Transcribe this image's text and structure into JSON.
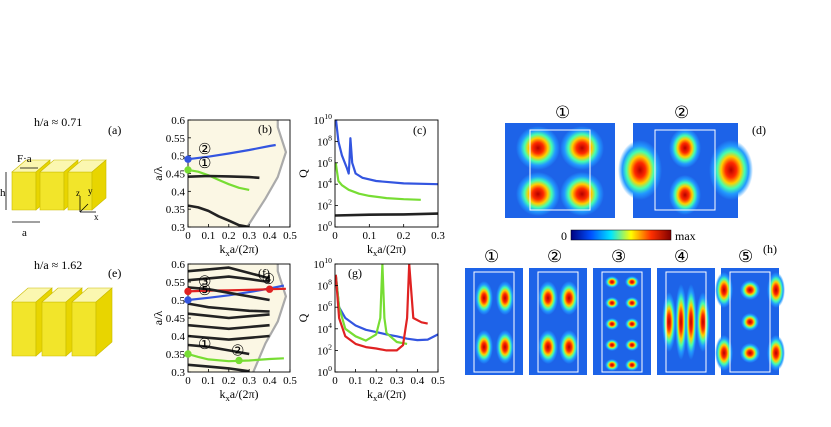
{
  "panels": {
    "a": {
      "tag": "(a)",
      "ratio": "h/a ≈ 0.71",
      "label_fa": "F·a",
      "label_h": "h",
      "label_a": "a",
      "label_z": "z",
      "label_y": "y",
      "label_x": "x"
    },
    "e": {
      "tag": "(e)",
      "ratio": "h/a ≈ 1.62"
    },
    "b": {
      "tag": "(b)"
    },
    "c": {
      "tag": "(c)"
    },
    "d": {
      "tag": "(d)",
      "modes": [
        "①",
        "②"
      ]
    },
    "f": {
      "tag": "(f)"
    },
    "g": {
      "tag": "(g)"
    },
    "h": {
      "tag": "(h)",
      "modes": [
        "①",
        "②",
        "③",
        "④",
        "⑤"
      ]
    }
  },
  "colorbar": {
    "min": "0",
    "max": "max"
  },
  "markers": [
    "①",
    "②",
    "③",
    "④",
    "⑤"
  ],
  "colors": {
    "blue": "#3355e0",
    "green": "#77dd33",
    "red": "#e02222",
    "band": "#222222",
    "fill": "#fbf7e4",
    "slab": "#f2e52a",
    "slab_light": "#fbf6a8"
  },
  "chart_data": [
    {
      "type": "line",
      "panel": "b",
      "xlabel": "kxa/(2π)",
      "ylabel": "a/λ",
      "xlim": [
        0,
        0.5
      ],
      "ylim": [
        0.3,
        0.6
      ],
      "xticks": [
        "0",
        "0.1",
        "0.2",
        "0.3",
        "0.4",
        "0.5"
      ],
      "yticks": [
        "0.3",
        "0.35",
        "0.4",
        "0.45",
        "0.5",
        "0.55",
        "0.6"
      ],
      "series": [
        {
          "color": "blue",
          "x": [
            0,
            0.1,
            0.2,
            0.3,
            0.4,
            0.43
          ],
          "y": [
            0.49,
            0.497,
            0.506,
            0.516,
            0.527,
            0.53
          ]
        },
        {
          "color": "green",
          "x": [
            0,
            0.05,
            0.1,
            0.15,
            0.2,
            0.25,
            0.3
          ],
          "y": [
            0.46,
            0.455,
            0.445,
            0.432,
            0.42,
            0.41,
            0.404
          ]
        },
        {
          "color": "band",
          "x": [
            0,
            0.1,
            0.2,
            0.3,
            0.35
          ],
          "y": [
            0.441,
            0.443,
            0.442,
            0.44,
            0.438
          ]
        },
        {
          "color": "band",
          "x": [
            0,
            0.05,
            0.1,
            0.15,
            0.2,
            0.25,
            0.3
          ],
          "y": [
            0.36,
            0.355,
            0.345,
            0.33,
            0.318,
            0.305,
            0.3
          ]
        }
      ],
      "light_line": {
        "x": [
          0.29,
          0.38,
          0.44,
          0.48,
          0.44
        ],
        "y": [
          0.3,
          0.38,
          0.44,
          0.51,
          0.58
        ]
      },
      "markers": [
        {
          "label": "①",
          "color": "green",
          "x": 0,
          "y": 0.46
        },
        {
          "label": "②",
          "color": "blue",
          "x": 0,
          "y": 0.49
        }
      ]
    },
    {
      "type": "line",
      "panel": "c",
      "xlabel": "kxa/(2π)",
      "ylabel": "Q",
      "yscale": "log",
      "xlim": [
        0,
        0.3
      ],
      "ylim": [
        1,
        10000000000.0
      ],
      "xticks": [
        "0",
        "0.1",
        "0.2",
        "0.3"
      ],
      "yticks": [
        "10^0",
        "10^2",
        "10^4",
        "10^6",
        "10^8",
        "10^10"
      ],
      "series": [
        {
          "color": "blue",
          "x": [
            0.003,
            0.01,
            0.02,
            0.035,
            0.04,
            0.042,
            0.045,
            0.05,
            0.06,
            0.08,
            0.12,
            0.2,
            0.3
          ],
          "y": [
            10000000000.0,
            100000000.0,
            5000000.0,
            300000.0,
            100000.0,
            1000000.0,
            200000000.0,
            1000000.0,
            100000.0,
            40000.0,
            20000.0,
            12000.0,
            10000.0
          ]
        },
        {
          "color": "green",
          "x": [
            0.002,
            0.01,
            0.02,
            0.04,
            0.07,
            0.1,
            0.15,
            0.2,
            0.25
          ],
          "y": [
            1000000.0,
            20000.0,
            8000.0,
            3000.0,
            1300.0,
            800,
            500,
            400,
            350
          ]
        },
        {
          "color": "band",
          "x": [
            0,
            0.1,
            0.2,
            0.3
          ],
          "y": [
            12,
            14,
            15,
            18
          ]
        }
      ]
    },
    {
      "type": "line",
      "panel": "f",
      "xlabel": "kxa/(2π)",
      "ylabel": "a/λ",
      "xlim": [
        0,
        0.5
      ],
      "ylim": [
        0.3,
        0.6
      ],
      "xticks": [
        "0",
        "0.1",
        "0.2",
        "0.3",
        "0.4",
        "0.5"
      ],
      "yticks": [
        "0.3",
        "0.35",
        "0.4",
        "0.45",
        "0.5",
        "0.55",
        "0.6"
      ],
      "series": [
        {
          "color": "blue",
          "x": [
            0,
            0.1,
            0.2,
            0.3,
            0.4,
            0.47
          ],
          "y": [
            0.5,
            0.506,
            0.513,
            0.522,
            0.532,
            0.54
          ]
        },
        {
          "color": "red",
          "x": [
            0,
            0.1,
            0.2,
            0.3,
            0.4,
            0.48
          ],
          "y": [
            0.524,
            0.526,
            0.527,
            0.528,
            0.53,
            0.531
          ]
        },
        {
          "color": "green",
          "x": [
            0,
            0.05,
            0.1,
            0.2,
            0.3,
            0.4,
            0.47
          ],
          "y": [
            0.35,
            0.342,
            0.335,
            0.33,
            0.332,
            0.336,
            0.338
          ]
        },
        {
          "color": "band",
          "x": [
            0,
            0.1,
            0.2,
            0.3,
            0.4
          ],
          "y": [
            0.58,
            0.585,
            0.59,
            0.575,
            0.56
          ]
        },
        {
          "color": "band",
          "x": [
            0,
            0.1,
            0.2,
            0.3,
            0.4
          ],
          "y": [
            0.555,
            0.56,
            0.565,
            0.558,
            0.55
          ]
        },
        {
          "color": "band",
          "x": [
            0,
            0.1,
            0.2,
            0.3,
            0.4
          ],
          "y": [
            0.535,
            0.53,
            0.52,
            0.51,
            0.5
          ]
        },
        {
          "color": "band",
          "x": [
            0,
            0.1,
            0.2,
            0.3,
            0.4
          ],
          "y": [
            0.49,
            0.48,
            0.475,
            0.47,
            0.468
          ]
        },
        {
          "color": "band",
          "x": [
            0,
            0.1,
            0.2,
            0.3,
            0.4
          ],
          "y": [
            0.462,
            0.456,
            0.45,
            0.455,
            0.46
          ]
        },
        {
          "color": "band",
          "x": [
            0,
            0.1,
            0.2,
            0.3,
            0.4
          ],
          "y": [
            0.43,
            0.425,
            0.42,
            0.425,
            0.43
          ]
        },
        {
          "color": "band",
          "x": [
            0,
            0.1,
            0.2,
            0.3,
            0.4
          ],
          "y": [
            0.4,
            0.395,
            0.39,
            0.395,
            0.4
          ]
        },
        {
          "color": "band",
          "x": [
            0,
            0.1,
            0.2,
            0.3
          ],
          "y": [
            0.375,
            0.37,
            0.36,
            0.35
          ]
        },
        {
          "color": "band",
          "x": [
            0,
            0.1,
            0.2,
            0.3
          ],
          "y": [
            0.32,
            0.315,
            0.31,
            0.302
          ]
        }
      ],
      "light_line": {
        "x": [
          0.32,
          0.38,
          0.44,
          0.48,
          0.44
        ],
        "y": [
          0.3,
          0.38,
          0.44,
          0.51,
          0.58
        ]
      },
      "markers": [
        {
          "label": "①",
          "color": "green",
          "x": 0,
          "y": 0.35
        },
        {
          "label": "②",
          "color": "green",
          "x": 0.25,
          "y": 0.332
        },
        {
          "label": "③",
          "color": "red",
          "x": 0,
          "y": 0.524
        },
        {
          "label": "④",
          "color": "red",
          "x": 0.4,
          "y": 0.53
        },
        {
          "label": "⑤",
          "color": "blue",
          "x": 0,
          "y": 0.5
        }
      ]
    },
    {
      "type": "line",
      "panel": "g",
      "xlabel": "kxa/(2π)",
      "ylabel": "Q",
      "yscale": "log",
      "xlim": [
        0,
        0.5
      ],
      "ylim": [
        1,
        10000000000.0
      ],
      "xticks": [
        "0",
        "0.1",
        "0.2",
        "0.3",
        "0.4",
        "0.5"
      ],
      "yticks": [
        "10^0",
        "10^2",
        "10^4",
        "10^6",
        "10^8",
        "10^10"
      ],
      "series": [
        {
          "color": "blue",
          "x": [
            0.004,
            0.02,
            0.05,
            0.1,
            0.15,
            0.2,
            0.25,
            0.3,
            0.35,
            0.4,
            0.45,
            0.5
          ],
          "y": [
            1000000000.0,
            1000000.0,
            100000.0,
            20000.0,
            8000.0,
            5000.0,
            3000.0,
            2000.0,
            1200.0,
            900,
            1000,
            3000
          ]
        },
        {
          "color": "green",
          "x": [
            0.004,
            0.02,
            0.05,
            0.1,
            0.15,
            0.2,
            0.22,
            0.23,
            0.24,
            0.25,
            0.3,
            0.35
          ],
          "y": [
            1000000000.0,
            1000000.0,
            10000.0,
            2000.0,
            800,
            3000.0,
            100000.0,
            10000000000.0,
            100000.0,
            4000.0,
            600,
            400
          ]
        },
        {
          "color": "red",
          "x": [
            0.004,
            0.02,
            0.05,
            0.1,
            0.15,
            0.2,
            0.25,
            0.3,
            0.33,
            0.35,
            0.36,
            0.38,
            0.42,
            0.45
          ],
          "y": [
            1000000000.0,
            100000.0,
            2000.0,
            400,
            200,
            150,
            100,
            100,
            300,
            100000.0,
            10000000000.0,
            100000.0,
            40000.0,
            30000.0
          ]
        }
      ]
    }
  ]
}
